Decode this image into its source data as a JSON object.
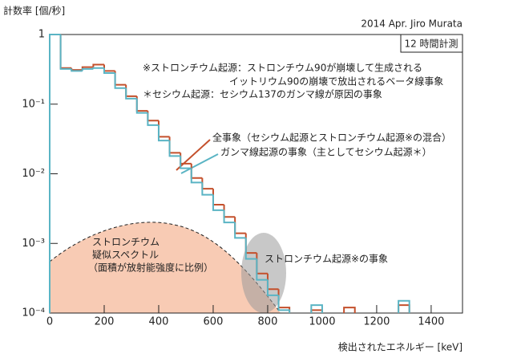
{
  "chart_data": {
    "type": "histogram",
    "y_label": "計数率 [個/秒]",
    "x_label": "検出されたエネルギー [keV]",
    "credit": "2014 Apr. Jiro Murata",
    "duration": "12 時間計測",
    "notes": [
      "※ストロンチウム起源：ストロンチウム90が崩壊して生成される",
      "イットリウム90の崩壊で放出されるベータ線事象",
      "＊セシウム起源：セシウム137のガンマ線が原因の事象"
    ],
    "sr_label": [
      "ストロンチウム",
      "疑似スペクトル",
      "（面積が放射能強度に比例）"
    ],
    "sr_region_label": "ストロンチウム起源※の事象",
    "bins": [
      0,
      40,
      80,
      120,
      160,
      200,
      240,
      280,
      320,
      360,
      400,
      440,
      480,
      520,
      560,
      600,
      640,
      680,
      720,
      760,
      800,
      840,
      880,
      920,
      960,
      1000,
      1040,
      1080,
      1120,
      1160,
      1200,
      1240,
      1280,
      1320,
      1360,
      1400,
      1440,
      1480,
      1520
    ],
    "series": [
      {
        "name": "全事象（セシウム起源とストロンチウム起源※の混合）",
        "color": "#c4502c",
        "values": [
          1.0,
          0.33,
          0.31,
          0.34,
          0.37,
          0.3,
          0.19,
          0.13,
          0.08,
          0.058,
          0.034,
          0.02,
          0.014,
          0.0087,
          0.0061,
          0.0036,
          0.0024,
          0.0014,
          0.00073,
          0.00037,
          0.00022,
          0.00012,
          null,
          null,
          0.00011,
          null,
          null,
          0.00012,
          null,
          null,
          null,
          null,
          0.00013,
          null,
          null,
          null,
          null,
          null
        ]
      },
      {
        "name": "ガンマ線起源の事象（主としてセシウム起源＊）",
        "color": "#5ab4c4",
        "values": [
          1.0,
          0.32,
          0.3,
          0.32,
          0.33,
          0.28,
          0.17,
          0.12,
          0.075,
          0.05,
          0.03,
          0.018,
          0.012,
          0.0075,
          0.005,
          0.003,
          0.002,
          0.0012,
          0.0006,
          0.0003,
          0.00018,
          0.00011,
          null,
          null,
          0.00013,
          null,
          null,
          null,
          null,
          null,
          null,
          null,
          0.00015,
          null,
          null,
          null,
          null,
          null
        ]
      }
    ],
    "xlim": [
      0,
      1515
    ],
    "xticks": [
      0,
      200,
      400,
      600,
      800,
      1000,
      1200,
      1400
    ],
    "ylim": [
      0.0001,
      1
    ],
    "yticks": [
      1,
      {
        "value": 0.1,
        "label": "10⁻¹"
      },
      {
        "value": 0.01,
        "label": "10⁻²"
      },
      {
        "value": 0.001,
        "label": "10⁻³"
      },
      {
        "value": 0.0001,
        "label": "10⁻⁴"
      }
    ],
    "log_y": true
  }
}
